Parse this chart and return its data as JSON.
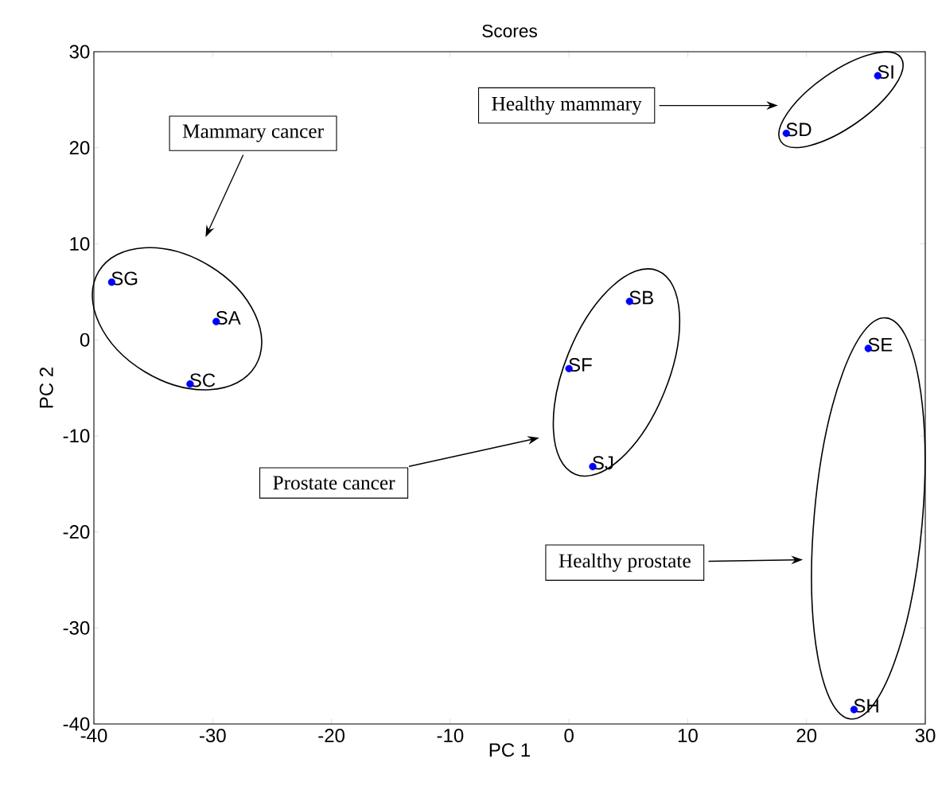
{
  "chart_data": {
    "type": "scatter",
    "title": "Scores",
    "xlabel": "PC 1",
    "ylabel": "PC 2",
    "xlim": [
      -40,
      30
    ],
    "ylim": [
      -40,
      30
    ],
    "xticks": [
      -40,
      -30,
      -20,
      -10,
      0,
      10,
      20,
      30
    ],
    "yticks": [
      -40,
      -30,
      -20,
      -10,
      0,
      10,
      20,
      30
    ],
    "marker": "circle",
    "series": [
      {
        "name": "SG",
        "color": "#0000ff",
        "x": [
          -38.5
        ],
        "values": [
          6.0
        ]
      },
      {
        "name": "SA",
        "color": "#0000ff",
        "x": [
          -29.7
        ],
        "values": [
          1.9
        ]
      },
      {
        "name": "SC",
        "color": "#0000ff",
        "x": [
          -31.9
        ],
        "values": [
          -4.6
        ]
      },
      {
        "name": "SB",
        "color": "#0000ff",
        "x": [
          5.1
        ],
        "values": [
          4.0
        ]
      },
      {
        "name": "SF",
        "color": "#0000ff",
        "x": [
          0.0
        ],
        "values": [
          -3.0
        ]
      },
      {
        "name": "SJ",
        "color": "#0000ff",
        "x": [
          2.0
        ],
        "values": [
          -13.2
        ]
      },
      {
        "name": "SE",
        "color": "#0000ff",
        "x": [
          25.2
        ],
        "values": [
          -0.9
        ]
      },
      {
        "name": "SH",
        "color": "#0000ff",
        "x": [
          24.0
        ],
        "values": [
          -38.5
        ]
      },
      {
        "name": "SD",
        "color": "#0000ff",
        "x": [
          18.3
        ],
        "values": [
          21.5
        ]
      },
      {
        "name": "SI",
        "color": "#0000ff",
        "x": [
          26.0
        ],
        "values": [
          27.5
        ]
      }
    ],
    "annotations": [
      "Mammary cancer",
      "Healthy mammary",
      "Prostate cancer",
      "Healthy prostate"
    ]
  }
}
